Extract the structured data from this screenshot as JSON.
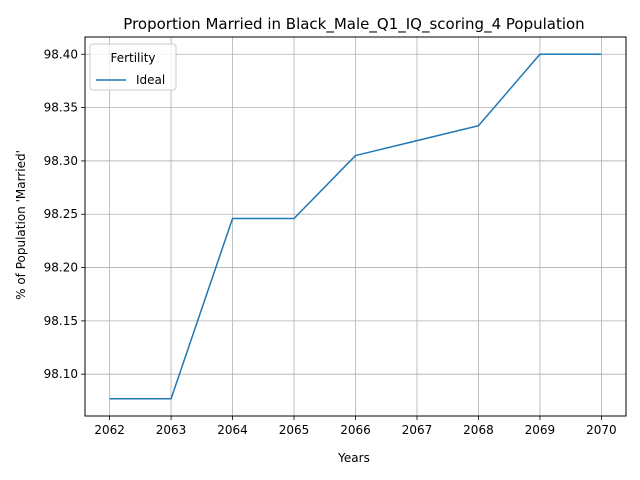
{
  "chart_data": {
    "type": "line",
    "title": "Proportion Married in Black_Male_Q1_IQ_scoring_4 Population",
    "xlabel": "Years",
    "ylabel": "% of Population 'Married'",
    "x": [
      2062,
      2063,
      2064,
      2065,
      2066,
      2067,
      2068,
      2069,
      2070
    ],
    "series": [
      {
        "name": "Ideal",
        "color": "#1f77b4",
        "values": [
          98.077,
          98.077,
          98.246,
          98.246,
          98.305,
          98.319,
          98.333,
          98.4,
          98.4
        ]
      }
    ],
    "x_ticks": [
      "2062",
      "2063",
      "2064",
      "2065",
      "2066",
      "2067",
      "2068",
      "2069",
      "2070"
    ],
    "y_ticks": [
      "98.10",
      "98.15",
      "98.20",
      "98.25",
      "98.30",
      "98.35",
      "98.40"
    ],
    "y_tick_values": [
      98.1,
      98.15,
      98.2,
      98.25,
      98.3,
      98.35,
      98.4
    ],
    "xlim": [
      2061.6,
      2070.4
    ],
    "ylim": [
      98.0608,
      98.4162
    ],
    "grid": true,
    "legend": {
      "title": "Fertility",
      "placement": "top-left"
    },
    "colors": {
      "grid": "#b0b0b0",
      "axis": "#000000"
    }
  }
}
